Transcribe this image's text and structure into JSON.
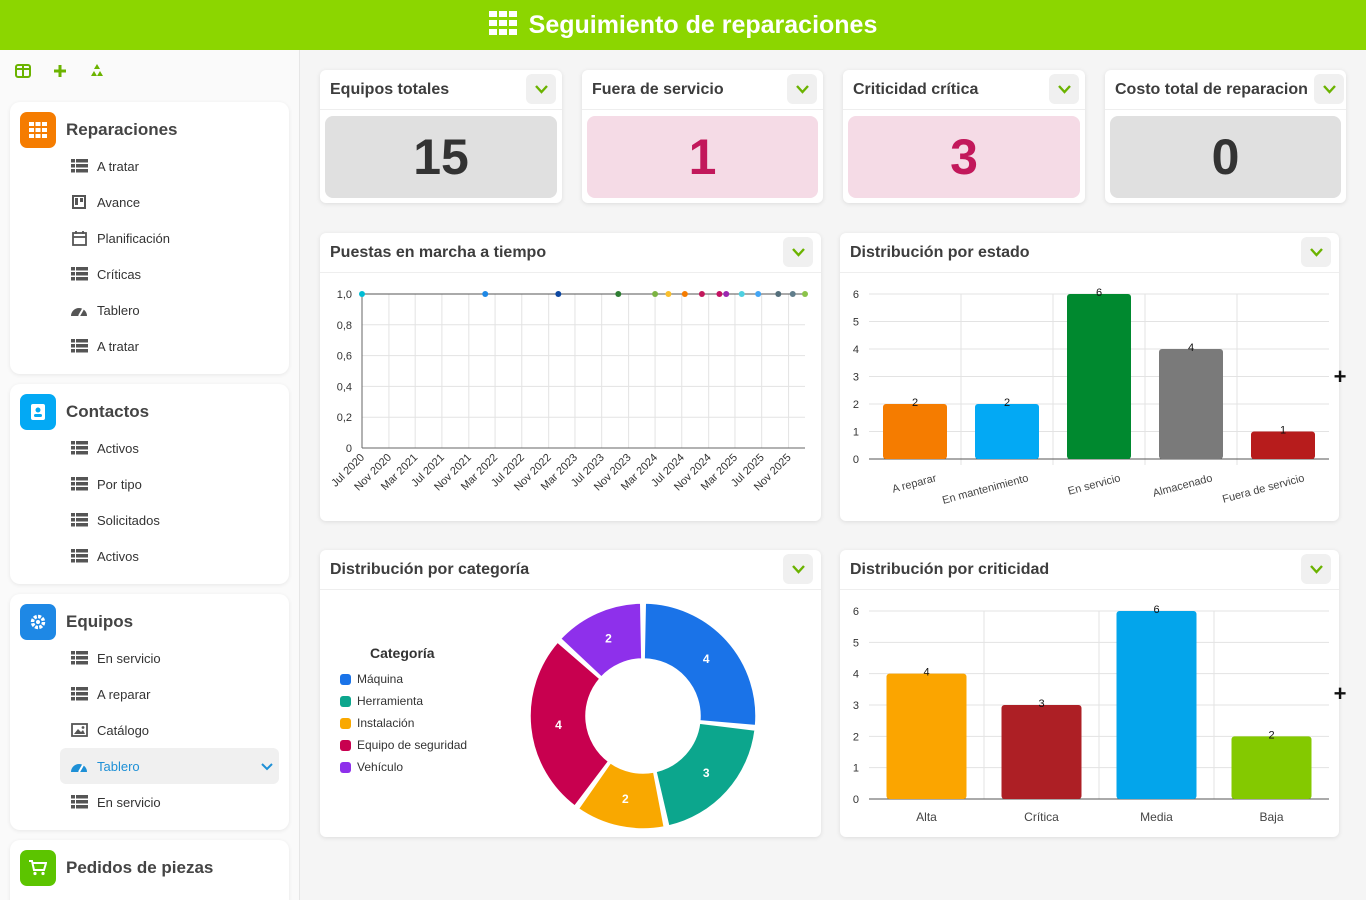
{
  "app": {
    "title": "Seguimiento de reparaciones"
  },
  "sidebar": {
    "tools": [
      {
        "icon": "layout-icon"
      },
      {
        "icon": "add-icon"
      },
      {
        "icon": "recycle-icon"
      }
    ],
    "sections": [
      {
        "title": "Reparaciones",
        "icon": "grid-icon",
        "color": "#f57c00",
        "items": [
          {
            "label": "A tratar",
            "icon": "table-icon"
          },
          {
            "label": "Avance",
            "icon": "kanban-icon"
          },
          {
            "label": "Planificación",
            "icon": "calendar-icon"
          },
          {
            "label": "Críticas",
            "icon": "table-icon"
          },
          {
            "label": "Tablero",
            "icon": "dashboard-icon"
          },
          {
            "label": "A tratar",
            "icon": "table-icon"
          }
        ]
      },
      {
        "title": "Contactos",
        "icon": "contact-book-icon",
        "color": "#03a9f4",
        "items": [
          {
            "label": "Activos",
            "icon": "table-icon"
          },
          {
            "label": "Por tipo",
            "icon": "table-icon"
          },
          {
            "label": "Solicitados",
            "icon": "table-icon"
          },
          {
            "label": "Activos",
            "icon": "table-icon"
          }
        ]
      },
      {
        "title": "Equipos",
        "icon": "gear-icon",
        "color": "#1e88e5",
        "items": [
          {
            "label": "En servicio",
            "icon": "table-icon"
          },
          {
            "label": "A reparar",
            "icon": "table-icon"
          },
          {
            "label": "Catálogo",
            "icon": "gallery-icon"
          },
          {
            "label": "Tablero",
            "icon": "dashboard-icon",
            "active": true
          },
          {
            "label": "En servicio",
            "icon": "table-icon"
          }
        ]
      },
      {
        "title": "Pedidos de piezas",
        "icon": "cart-icon",
        "color": "#5cc400",
        "items": []
      }
    ]
  },
  "kpis": [
    {
      "label": "Equipos totales",
      "value": "15",
      "bg": "#e0e0e0",
      "color": "#333333"
    },
    {
      "label": "Fuera de servicio",
      "value": "1",
      "bg": "#f5dbe6",
      "color": "#c2185b"
    },
    {
      "label": "Criticidad crítica",
      "value": "3",
      "bg": "#f5dbe6",
      "color": "#c2185b"
    },
    {
      "label": "Costo total de reparacion",
      "value": "0",
      "bg": "#e0e0e0",
      "color": "#333333"
    }
  ],
  "charts": {
    "timeline_title": "Puestas en marcha a tiempo",
    "estado_title": "Distribución por estado",
    "categoria_title": "Distribución por categoría",
    "criticidad_title": "Distribución por criticidad",
    "legend_title": "Categoría"
  },
  "chart_data": [
    {
      "type": "line",
      "title": "Puestas en marcha a tiempo",
      "ylim": [
        0,
        1
      ],
      "y_ticks": [
        "0",
        "0,2",
        "0,4",
        "0,6",
        "0,8",
        "1,0"
      ],
      "x_ticks": [
        "Jul 2020",
        "Nov 2020",
        "Mar 2021",
        "Jul 2021",
        "Nov 2021",
        "Mar 2022",
        "Jul 2022",
        "Nov 2022",
        "Mar 2023",
        "Jul 2023",
        "Nov 2023",
        "Mar 2024",
        "Jul 2024",
        "Nov 2024",
        "Mar 2025",
        "Jul 2025",
        "Nov 2025"
      ],
      "points": [
        {
          "x": "2020-07-01",
          "y": 1,
          "color": "#00bcd4"
        },
        {
          "x": "2022-01-15",
          "y": 1,
          "color": "#1e88e5"
        },
        {
          "x": "2022-12-15",
          "y": 1,
          "color": "#0d47a1"
        },
        {
          "x": "2023-09-15",
          "y": 1,
          "color": "#2e7d32"
        },
        {
          "x": "2024-03-01",
          "y": 1,
          "color": "#7cb342"
        },
        {
          "x": "2024-05-01",
          "y": 1,
          "color": "#fbc02d"
        },
        {
          "x": "2024-07-15",
          "y": 1,
          "color": "#f57c00"
        },
        {
          "x": "2024-10-01",
          "y": 1,
          "color": "#c2185b"
        },
        {
          "x": "2024-12-20",
          "y": 1,
          "color": "#c51162"
        },
        {
          "x": "2025-01-20",
          "y": 1,
          "color": "#9c27b0"
        },
        {
          "x": "2025-04-01",
          "y": 1,
          "color": "#4dd0e1"
        },
        {
          "x": "2025-06-15",
          "y": 1,
          "color": "#42a5f5"
        },
        {
          "x": "2025-09-15",
          "y": 1,
          "color": "#546e7a"
        },
        {
          "x": "2025-11-20",
          "y": 1,
          "color": "#607d8b"
        },
        {
          "x": "2026-01-15",
          "y": 1,
          "color": "#8bc34a"
        }
      ]
    },
    {
      "type": "bar",
      "title": "Distribución por estado",
      "categories": [
        "A reparar",
        "En mantenimiento",
        "En servicio",
        "Almacenado",
        "Fuera de servicio"
      ],
      "values": [
        2,
        2,
        6,
        4,
        1
      ],
      "colors": [
        "#f57c00",
        "#03a9f4",
        "#00892f",
        "#7a7a7a",
        "#b71c1c"
      ],
      "ylim": [
        0,
        6
      ]
    },
    {
      "type": "pie",
      "title": "Distribución por categoría",
      "legend_title": "Categoría",
      "labels": [
        "Máquina",
        "Herramienta",
        "Instalación",
        "Equipo de seguridad",
        "Vehículo"
      ],
      "values": [
        4,
        3,
        2,
        4,
        2
      ],
      "colors": [
        "#1a73e8",
        "#0ca68d",
        "#f9a800",
        "#c8004f",
        "#8e30eb"
      ]
    },
    {
      "type": "bar",
      "title": "Distribución por criticidad",
      "categories": [
        "Alta",
        "Crítica",
        "Media",
        "Baja"
      ],
      "values": [
        4,
        3,
        6,
        2
      ],
      "colors": [
        "#fba500",
        "#ad1f25",
        "#03a5eb",
        "#84c900"
      ],
      "ylim": [
        0,
        6
      ]
    }
  ]
}
